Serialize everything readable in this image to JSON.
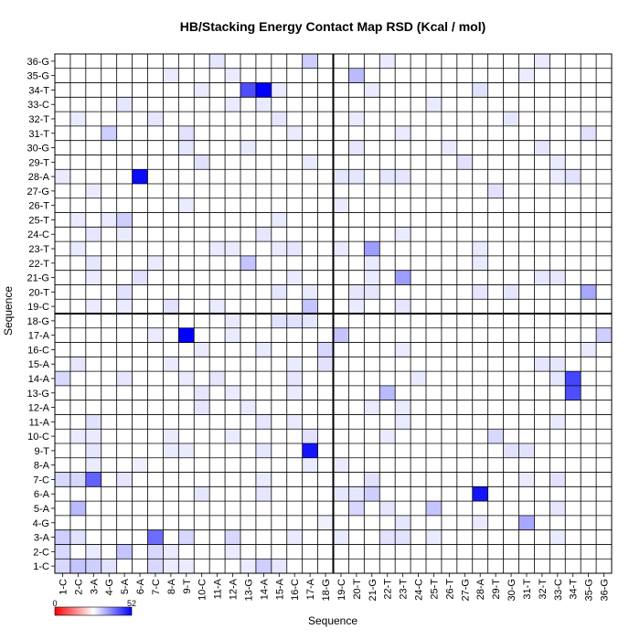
{
  "chart_data": {
    "type": "heatmap",
    "title": "HB/Stacking Energy Contact Map RSD (Kcal / mol)",
    "xlabel": "Sequence",
    "ylabel": "Sequence",
    "labels": [
      "1-C",
      "2-C",
      "3-A",
      "4-G",
      "5-A",
      "6-A",
      "7-C",
      "8-A",
      "9-T",
      "10-C",
      "11-A",
      "12-A",
      "13-G",
      "14-A",
      "15-A",
      "16-C",
      "17-A",
      "18-G",
      "19-C",
      "20-T",
      "21-G",
      "22-T",
      "23-T",
      "24-C",
      "25-T",
      "26-T",
      "27-G",
      "28-A",
      "29-T",
      "30-G",
      "31-T",
      "32-T",
      "33-C",
      "34-T",
      "35-G",
      "36-G"
    ],
    "colorbar": {
      "min": 0,
      "max": 52,
      "min_label": "0",
      "max_label": "52",
      "colors": [
        "#ff0000",
        "#ffffff",
        "#0000ff"
      ]
    },
    "grid": true,
    "dividers_after_index": 18,
    "cells": [
      [
        1,
        1,
        8
      ],
      [
        1,
        2,
        12
      ],
      [
        2,
        1,
        8
      ],
      [
        1,
        3,
        10
      ],
      [
        1,
        4,
        6
      ],
      [
        2,
        3,
        4
      ],
      [
        3,
        2,
        6
      ],
      [
        3,
        1,
        10
      ],
      [
        1,
        7,
        8
      ],
      [
        1,
        14,
        10
      ],
      [
        1,
        15,
        5
      ],
      [
        1,
        13,
        4
      ],
      [
        1,
        8,
        4
      ],
      [
        1,
        9,
        4
      ],
      [
        2,
        5,
        12
      ],
      [
        2,
        7,
        8
      ],
      [
        2,
        8,
        4
      ],
      [
        2,
        12,
        4
      ],
      [
        3,
        7,
        30
      ],
      [
        3,
        9,
        8
      ],
      [
        3,
        12,
        8
      ],
      [
        3,
        16,
        4
      ],
      [
        3,
        19,
        4
      ],
      [
        3,
        22,
        6
      ],
      [
        3,
        23,
        6
      ],
      [
        3,
        25,
        4
      ],
      [
        3,
        33,
        4
      ],
      [
        4,
        31,
        18
      ],
      [
        4,
        18,
        3
      ],
      [
        4,
        23,
        5
      ],
      [
        4,
        28,
        4
      ],
      [
        5,
        2,
        14
      ],
      [
        5,
        20,
        8
      ],
      [
        5,
        25,
        12
      ],
      [
        5,
        22,
        5
      ],
      [
        5,
        33,
        5
      ],
      [
        6,
        20,
        5
      ],
      [
        6,
        21,
        10
      ],
      [
        6,
        28,
        48
      ],
      [
        6,
        10,
        5
      ],
      [
        6,
        14,
        5
      ],
      [
        6,
        19,
        5
      ],
      [
        7,
        1,
        8
      ],
      [
        7,
        2,
        8
      ],
      [
        7,
        3,
        32
      ],
      [
        7,
        5,
        5
      ],
      [
        7,
        14,
        4
      ],
      [
        7,
        21,
        6
      ],
      [
        7,
        31,
        4
      ],
      [
        7,
        33,
        6
      ],
      [
        8,
        17,
        4
      ],
      [
        8,
        19,
        4
      ],
      [
        8,
        3,
        4
      ],
      [
        8,
        6,
        3
      ],
      [
        9,
        3,
        5
      ],
      [
        9,
        17,
        48
      ],
      [
        9,
        8,
        4
      ],
      [
        9,
        9,
        4
      ],
      [
        9,
        14,
        5
      ],
      [
        9,
        30,
        6
      ],
      [
        9,
        31,
        6
      ],
      [
        10,
        2,
        4
      ],
      [
        10,
        3,
        4
      ],
      [
        10,
        8,
        4
      ],
      [
        10,
        12,
        4
      ],
      [
        10,
        17,
        6
      ],
      [
        10,
        29,
        8
      ],
      [
        10,
        22,
        4
      ],
      [
        11,
        3,
        6
      ],
      [
        11,
        14,
        5
      ],
      [
        11,
        16,
        4
      ],
      [
        11,
        23,
        4
      ],
      [
        11,
        33,
        4
      ],
      [
        12,
        10,
        5
      ],
      [
        12,
        13,
        4
      ],
      [
        12,
        21,
        4
      ],
      [
        12,
        23,
        4
      ],
      [
        13,
        22,
        14
      ],
      [
        13,
        34,
        36
      ],
      [
        13,
        12,
        4
      ],
      [
        13,
        16,
        4
      ],
      [
        13,
        10,
        5
      ],
      [
        14,
        1,
        8
      ],
      [
        14,
        34,
        38
      ],
      [
        14,
        5,
        5
      ],
      [
        14,
        9,
        4
      ],
      [
        14,
        11,
        5
      ],
      [
        14,
        16,
        5
      ],
      [
        14,
        24,
        4
      ],
      [
        14,
        33,
        5
      ],
      [
        15,
        2,
        5
      ],
      [
        15,
        18,
        6
      ],
      [
        15,
        16,
        4
      ],
      [
        15,
        32,
        5
      ],
      [
        15,
        33,
        5
      ],
      [
        15,
        8,
        4
      ],
      [
        16,
        18,
        8
      ],
      [
        16,
        10,
        4
      ],
      [
        16,
        14,
        4
      ],
      [
        16,
        23,
        4
      ],
      [
        16,
        35,
        4
      ],
      [
        17,
        9,
        52
      ],
      [
        17,
        19,
        12
      ],
      [
        17,
        36,
        10
      ],
      [
        17,
        7,
        4
      ],
      [
        17,
        12,
        4
      ],
      [
        18,
        15,
        6
      ],
      [
        18,
        16,
        6
      ],
      [
        18,
        17,
        5
      ],
      [
        18,
        12,
        4
      ],
      [
        19,
        17,
        12
      ],
      [
        19,
        8,
        6
      ],
      [
        19,
        23,
        5
      ],
      [
        19,
        3,
        4
      ],
      [
        19,
        5,
        4
      ],
      [
        19,
        11,
        4
      ],
      [
        19,
        20,
        4
      ],
      [
        20,
        5,
        6
      ],
      [
        20,
        15,
        5
      ],
      [
        20,
        35,
        18
      ],
      [
        20,
        17,
        4
      ],
      [
        20,
        20,
        5
      ],
      [
        20,
        21,
        5
      ],
      [
        20,
        28,
        5
      ],
      [
        20,
        30,
        5
      ],
      [
        21,
        6,
        6
      ],
      [
        21,
        23,
        20
      ],
      [
        21,
        16,
        4
      ],
      [
        21,
        21,
        4
      ],
      [
        21,
        32,
        5
      ],
      [
        21,
        33,
        5
      ],
      [
        21,
        3,
        4
      ],
      [
        22,
        13,
        12
      ],
      [
        22,
        3,
        5
      ],
      [
        22,
        7,
        4
      ],
      [
        22,
        21,
        4
      ],
      [
        22,
        28,
        4
      ],
      [
        23,
        21,
        20
      ],
      [
        23,
        11,
        4
      ],
      [
        23,
        12,
        4
      ],
      [
        23,
        15,
        4
      ],
      [
        23,
        16,
        5
      ],
      [
        23,
        19,
        4
      ],
      [
        23,
        2,
        4
      ],
      [
        23,
        28,
        4
      ],
      [
        24,
        3,
        5
      ],
      [
        24,
        14,
        5
      ],
      [
        24,
        5,
        4
      ],
      [
        24,
        23,
        4
      ],
      [
        25,
        5,
        10
      ],
      [
        25,
        2,
        4
      ],
      [
        25,
        4,
        4
      ],
      [
        25,
        15,
        4
      ],
      [
        26,
        9,
        4
      ],
      [
        26,
        19,
        4
      ],
      [
        27,
        29,
        6
      ],
      [
        27,
        3,
        4
      ],
      [
        28,
        6,
        50
      ],
      [
        28,
        19,
        5
      ],
      [
        28,
        20,
        5
      ],
      [
        28,
        22,
        5
      ],
      [
        28,
        23,
        5
      ],
      [
        28,
        34,
        6
      ],
      [
        28,
        1,
        4
      ],
      [
        28,
        33,
        4
      ],
      [
        29,
        10,
        6
      ],
      [
        29,
        17,
        4
      ],
      [
        29,
        27,
        6
      ],
      [
        29,
        33,
        4
      ],
      [
        30,
        9,
        5
      ],
      [
        30,
        20,
        5
      ],
      [
        30,
        13,
        4
      ],
      [
        30,
        26,
        4
      ],
      [
        30,
        32,
        5
      ],
      [
        31,
        4,
        10
      ],
      [
        31,
        9,
        6
      ],
      [
        31,
        35,
        6
      ],
      [
        31,
        16,
        4
      ],
      [
        31,
        23,
        4
      ],
      [
        32,
        7,
        5
      ],
      [
        32,
        15,
        5
      ],
      [
        32,
        30,
        5
      ],
      [
        32,
        2,
        4
      ],
      [
        32,
        20,
        4
      ],
      [
        33,
        5,
        5
      ],
      [
        33,
        12,
        4
      ],
      [
        33,
        14,
        4
      ],
      [
        33,
        25,
        4
      ],
      [
        34,
        13,
        36
      ],
      [
        34,
        14,
        52
      ],
      [
        34,
        28,
        6
      ],
      [
        34,
        10,
        4
      ],
      [
        34,
        15,
        4
      ],
      [
        34,
        21,
        4
      ],
      [
        35,
        20,
        14
      ],
      [
        35,
        8,
        4
      ],
      [
        35,
        12,
        4
      ],
      [
        35,
        31,
        4
      ],
      [
        36,
        17,
        10
      ],
      [
        36,
        11,
        5
      ],
      [
        36,
        32,
        4
      ],
      [
        36,
        22,
        4
      ]
    ]
  }
}
